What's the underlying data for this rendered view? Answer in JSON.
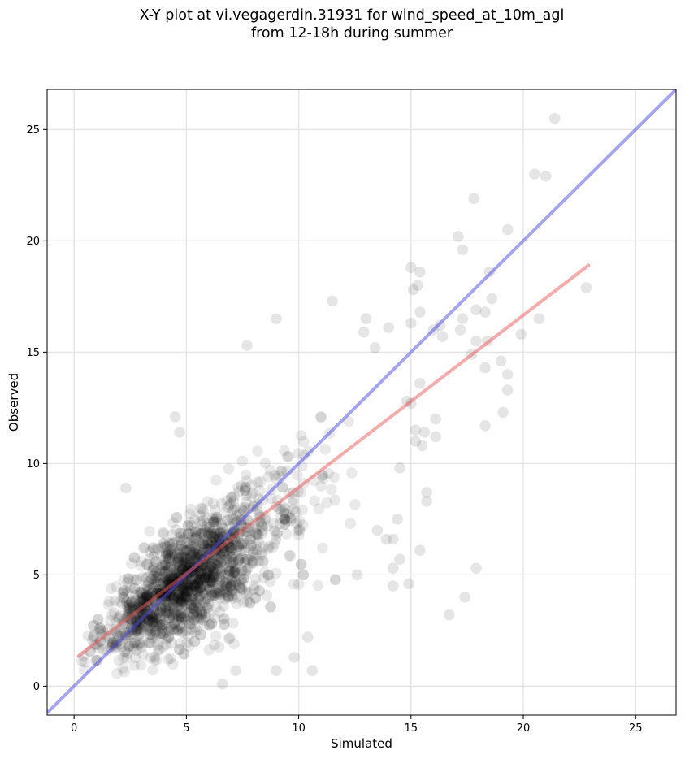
{
  "chart_data": {
    "type": "scatter",
    "title_line1": "X-Y plot at vi.vegagerdin.31931 for wind_speed_at_10m_agl",
    "title_line2": "from 12-18h during summer",
    "xlabel": "Simulated",
    "ylabel": "Observed",
    "xlim": [
      -1.2,
      26.8
    ],
    "ylim": [
      -1.3,
      26.8
    ],
    "xticks": [
      0,
      5,
      10,
      15,
      20,
      25
    ],
    "yticks": [
      0,
      5,
      10,
      15,
      20,
      25
    ],
    "grid": true,
    "point_color": "#000000",
    "identity_line": {
      "color": "#4a4ae8",
      "from": [
        -1.2,
        -1.2
      ],
      "to": [
        26.8,
        26.8
      ]
    },
    "fit_line": {
      "color": "#ee5555",
      "from": [
        0.2,
        1.35
      ],
      "to": [
        22.9,
        18.9
      ]
    },
    "outlier_points": [
      {
        "x": 21.4,
        "y": 25.5
      },
      {
        "x": 20.5,
        "y": 23.0
      },
      {
        "x": 21.0,
        "y": 22.9
      },
      {
        "x": 17.8,
        "y": 21.9
      },
      {
        "x": 19.3,
        "y": 20.5
      },
      {
        "x": 17.1,
        "y": 20.2
      },
      {
        "x": 17.3,
        "y": 19.6
      },
      {
        "x": 22.8,
        "y": 17.9
      },
      {
        "x": 18.5,
        "y": 18.6
      },
      {
        "x": 18.6,
        "y": 17.4
      },
      {
        "x": 15.0,
        "y": 18.8
      },
      {
        "x": 15.4,
        "y": 18.6
      },
      {
        "x": 15.3,
        "y": 18.0
      },
      {
        "x": 15.1,
        "y": 17.8
      },
      {
        "x": 17.9,
        "y": 16.9
      },
      {
        "x": 18.3,
        "y": 16.8
      },
      {
        "x": 20.7,
        "y": 16.5
      },
      {
        "x": 17.3,
        "y": 16.5
      },
      {
        "x": 15.4,
        "y": 16.8
      },
      {
        "x": 15.0,
        "y": 16.3
      },
      {
        "x": 16.3,
        "y": 16.2
      },
      {
        "x": 16.0,
        "y": 16.0
      },
      {
        "x": 17.2,
        "y": 16.0
      },
      {
        "x": 19.9,
        "y": 15.8
      },
      {
        "x": 16.4,
        "y": 15.7
      },
      {
        "x": 17.9,
        "y": 15.5
      },
      {
        "x": 18.4,
        "y": 15.5
      },
      {
        "x": 17.7,
        "y": 14.9
      },
      {
        "x": 19.0,
        "y": 14.6
      },
      {
        "x": 18.3,
        "y": 14.3
      },
      {
        "x": 19.3,
        "y": 14.0
      },
      {
        "x": 19.3,
        "y": 13.3
      },
      {
        "x": 15.4,
        "y": 13.6
      },
      {
        "x": 14.8,
        "y": 12.8
      },
      {
        "x": 15.0,
        "y": 12.7
      },
      {
        "x": 16.1,
        "y": 12.0
      },
      {
        "x": 19.1,
        "y": 12.3
      },
      {
        "x": 18.3,
        "y": 11.7
      },
      {
        "x": 15.2,
        "y": 11.5
      },
      {
        "x": 15.6,
        "y": 11.4
      },
      {
        "x": 16.1,
        "y": 11.2
      },
      {
        "x": 15.2,
        "y": 11.0
      },
      {
        "x": 15.5,
        "y": 10.8
      },
      {
        "x": 14.5,
        "y": 9.8
      },
      {
        "x": 15.7,
        "y": 8.7
      },
      {
        "x": 15.7,
        "y": 8.3
      },
      {
        "x": 15.4,
        "y": 6.1
      },
      {
        "x": 17.9,
        "y": 5.3
      },
      {
        "x": 14.9,
        "y": 4.6
      },
      {
        "x": 17.4,
        "y": 4.0
      },
      {
        "x": 16.7,
        "y": 3.2
      },
      {
        "x": 14.2,
        "y": 4.5
      },
      {
        "x": 14.2,
        "y": 5.3
      },
      {
        "x": 14.5,
        "y": 5.7
      },
      {
        "x": 14.2,
        "y": 6.6
      },
      {
        "x": 14.4,
        "y": 7.5
      },
      {
        "x": 13.5,
        "y": 7.0
      },
      {
        "x": 13.9,
        "y": 6.6
      },
      {
        "x": 12.6,
        "y": 5.0
      },
      {
        "x": 7.7,
        "y": 15.3
      },
      {
        "x": 9.0,
        "y": 16.5
      },
      {
        "x": 10.4,
        "y": 2.2
      },
      {
        "x": 10.6,
        "y": 0.7
      },
      {
        "x": 9.0,
        "y": 0.7
      },
      {
        "x": 9.8,
        "y": 1.3
      },
      {
        "x": 4.5,
        "y": 12.1
      },
      {
        "x": 4.7,
        "y": 11.4
      },
      {
        "x": 2.3,
        "y": 8.9
      },
      {
        "x": 6.6,
        "y": 0.1
      },
      {
        "x": 7.2,
        "y": 0.7
      },
      {
        "x": 11.5,
        "y": 17.3
      },
      {
        "x": 13.0,
        "y": 16.5
      },
      {
        "x": 12.9,
        "y": 15.9
      },
      {
        "x": 14.0,
        "y": 16.1
      },
      {
        "x": 13.4,
        "y": 15.2
      }
    ]
  }
}
